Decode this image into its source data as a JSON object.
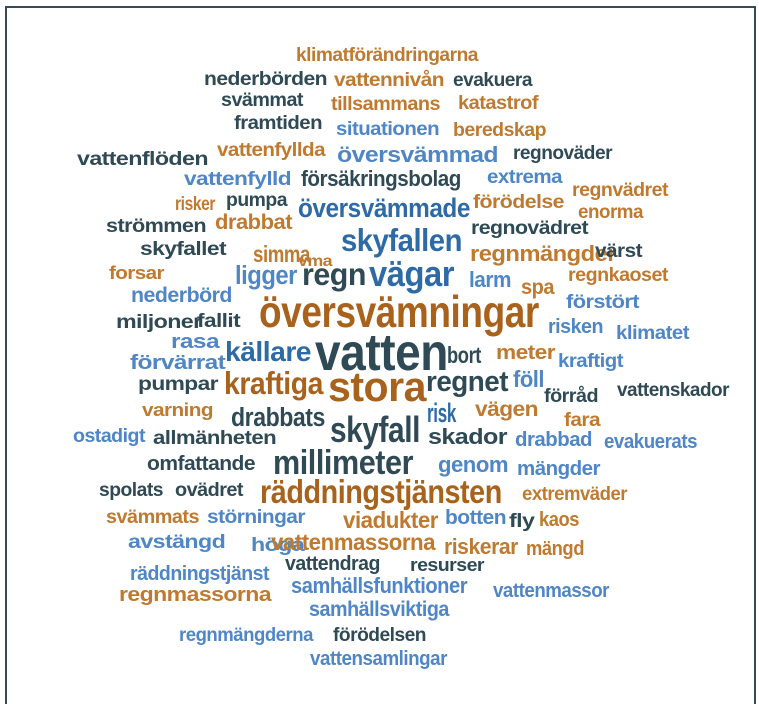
{
  "palette": {
    "orange": "#c07a30",
    "blue": "#4f86c6",
    "dark": "#2f4a55",
    "darkblue": "#2e6aa6",
    "brown": "#a8621c"
  },
  "words": [
    {
      "text": "klimatförändringarna",
      "color": "orange"
    },
    {
      "text": "nederbörden",
      "color": "dark"
    },
    {
      "text": "vattennivån",
      "color": "orange"
    },
    {
      "text": "evakuera",
      "color": "dark"
    },
    {
      "text": "svämmat",
      "color": "dark"
    },
    {
      "text": "tillsammans",
      "color": "orange"
    },
    {
      "text": "katastrof",
      "color": "orange"
    },
    {
      "text": "framtiden",
      "color": "dark"
    },
    {
      "text": "situationen",
      "color": "blue"
    },
    {
      "text": "beredskap",
      "color": "orange"
    },
    {
      "text": "vattenflöden",
      "color": "dark"
    },
    {
      "text": "vattenfyllda",
      "color": "orange"
    },
    {
      "text": "översvämmad",
      "color": "blue"
    },
    {
      "text": "regnoväder",
      "color": "dark"
    },
    {
      "text": "vattenfylld",
      "color": "blue"
    },
    {
      "text": "försäkringsbolag",
      "color": "dark"
    },
    {
      "text": "extrema",
      "color": "blue"
    },
    {
      "text": "regnvädret",
      "color": "orange"
    },
    {
      "text": "risker",
      "color": "orange"
    },
    {
      "text": "pumpa",
      "color": "dark"
    },
    {
      "text": "översvämmade",
      "color": "darkblue"
    },
    {
      "text": "förödelse",
      "color": "orange"
    },
    {
      "text": "enorma",
      "color": "orange"
    },
    {
      "text": "strömmen",
      "color": "dark"
    },
    {
      "text": "drabbat",
      "color": "orange"
    },
    {
      "text": "regnovädret",
      "color": "dark"
    },
    {
      "text": "skyfallet",
      "color": "dark"
    },
    {
      "text": "simma",
      "color": "orange"
    },
    {
      "text": "vma",
      "color": "orange"
    },
    {
      "text": "skyfallen",
      "color": "darkblue"
    },
    {
      "text": "regnmängder",
      "color": "orange"
    },
    {
      "text": "värst",
      "color": "dark"
    },
    {
      "text": "forsar",
      "color": "orange"
    },
    {
      "text": "ligger",
      "color": "blue"
    },
    {
      "text": "regn",
      "color": "dark"
    },
    {
      "text": "vägar",
      "color": "darkblue"
    },
    {
      "text": "larm",
      "color": "blue"
    },
    {
      "text": "regnkaoset",
      "color": "orange"
    },
    {
      "text": "nederbörd",
      "color": "blue"
    },
    {
      "text": "spa",
      "color": "orange"
    },
    {
      "text": "förstört",
      "color": "blue"
    },
    {
      "text": "översvämningar",
      "color": "brown"
    },
    {
      "text": "miljoner",
      "color": "dark"
    },
    {
      "text": "fallit",
      "color": "dark"
    },
    {
      "text": "risken",
      "color": "blue"
    },
    {
      "text": "klimatet",
      "color": "blue"
    },
    {
      "text": "rasa",
      "color": "blue"
    },
    {
      "text": "källare",
      "color": "darkblue"
    },
    {
      "text": "vatten",
      "color": "dark"
    },
    {
      "text": "bort",
      "color": "dark"
    },
    {
      "text": "meter",
      "color": "orange"
    },
    {
      "text": "förvärrat",
      "color": "blue"
    },
    {
      "text": "kraftigt",
      "color": "blue"
    },
    {
      "text": "pumpar",
      "color": "dark"
    },
    {
      "text": "kraftiga",
      "color": "brown"
    },
    {
      "text": "stora",
      "color": "brown"
    },
    {
      "text": "regnet",
      "color": "dark"
    },
    {
      "text": "föll",
      "color": "blue"
    },
    {
      "text": "förråd",
      "color": "dark"
    },
    {
      "text": "vattenskador",
      "color": "dark"
    },
    {
      "text": "varning",
      "color": "orange"
    },
    {
      "text": "drabbats",
      "color": "dark"
    },
    {
      "text": "risk",
      "color": "darkblue"
    },
    {
      "text": "vägen",
      "color": "orange"
    },
    {
      "text": "fara",
      "color": "orange"
    },
    {
      "text": "ostadigt",
      "color": "blue"
    },
    {
      "text": "allmänheten",
      "color": "dark"
    },
    {
      "text": "skyfall",
      "color": "dark"
    },
    {
      "text": "skador",
      "color": "dark"
    },
    {
      "text": "drabbad",
      "color": "blue"
    },
    {
      "text": "evakuerats",
      "color": "blue"
    },
    {
      "text": "omfattande",
      "color": "dark"
    },
    {
      "text": "millimeter",
      "color": "dark"
    },
    {
      "text": "genom",
      "color": "blue"
    },
    {
      "text": "mängder",
      "color": "blue"
    },
    {
      "text": "spolats",
      "color": "dark"
    },
    {
      "text": "ovädret",
      "color": "dark"
    },
    {
      "text": "räddningstjänsten",
      "color": "brown"
    },
    {
      "text": "extremväder",
      "color": "orange"
    },
    {
      "text": "svämmats",
      "color": "orange"
    },
    {
      "text": "störningar",
      "color": "blue"
    },
    {
      "text": "viadukter",
      "color": "orange"
    },
    {
      "text": "botten",
      "color": "blue"
    },
    {
      "text": "fly",
      "color": "dark"
    },
    {
      "text": "kaos",
      "color": "orange"
    },
    {
      "text": "avstängd",
      "color": "blue"
    },
    {
      "text": "höga",
      "color": "blue"
    },
    {
      "text": "vattenmassorna",
      "color": "orange"
    },
    {
      "text": "riskerar",
      "color": "orange"
    },
    {
      "text": "mängd",
      "color": "orange"
    },
    {
      "text": "vattendrag",
      "color": "dark"
    },
    {
      "text": "resurser",
      "color": "dark"
    },
    {
      "text": "räddningstjänst",
      "color": "blue"
    },
    {
      "text": "samhällsfunktioner",
      "color": "blue"
    },
    {
      "text": "vattenmassor",
      "color": "blue"
    },
    {
      "text": "regnmassorna",
      "color": "orange"
    },
    {
      "text": "samhällsviktiga",
      "color": "blue"
    },
    {
      "text": "regnmängderna",
      "color": "blue"
    },
    {
      "text": "förödelsen",
      "color": "dark"
    },
    {
      "text": "vattensamlingar",
      "color": "blue"
    }
  ]
}
